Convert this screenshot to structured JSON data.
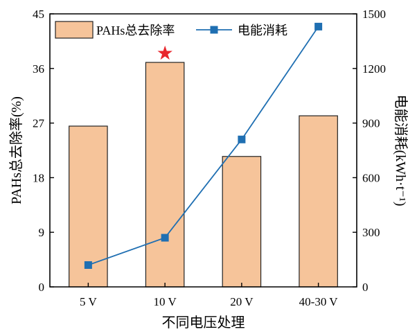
{
  "chart_data": {
    "type": "bar",
    "categories": [
      "5 V",
      "10 V",
      "20 V",
      "40-30 V"
    ],
    "xlabel": "不同电压处理",
    "colors": {
      "bar_fill": "#F6C49A",
      "bar_stroke": "#222222",
      "line": "#1F6FB2",
      "star": "#E8262C"
    },
    "series": [
      {
        "name": "PAHs总去除率",
        "type": "bar",
        "axis": "left",
        "values": [
          26.5,
          37.0,
          21.5,
          28.2
        ]
      },
      {
        "name": "电能消耗",
        "type": "line",
        "axis": "right",
        "marker": "square",
        "values": [
          120,
          270,
          810,
          1430
        ]
      }
    ],
    "y_left": {
      "label": "PAHs总去除率(%)",
      "range": [
        0,
        45
      ],
      "ticks": [
        "0",
        "9",
        "18",
        "27",
        "36",
        "45"
      ]
    },
    "y_right": {
      "label": "电能消耗(kWh·t⁻¹)",
      "range": [
        0,
        1500
      ],
      "ticks": [
        "0",
        "300",
        "600",
        "900",
        "1200",
        "1500"
      ]
    },
    "annotation": {
      "symbol": "★",
      "category_index": 1
    },
    "legend": {
      "placement": "top-left",
      "entries": [
        "PAHs总去除率",
        "电能消耗"
      ]
    },
    "grid": false
  }
}
